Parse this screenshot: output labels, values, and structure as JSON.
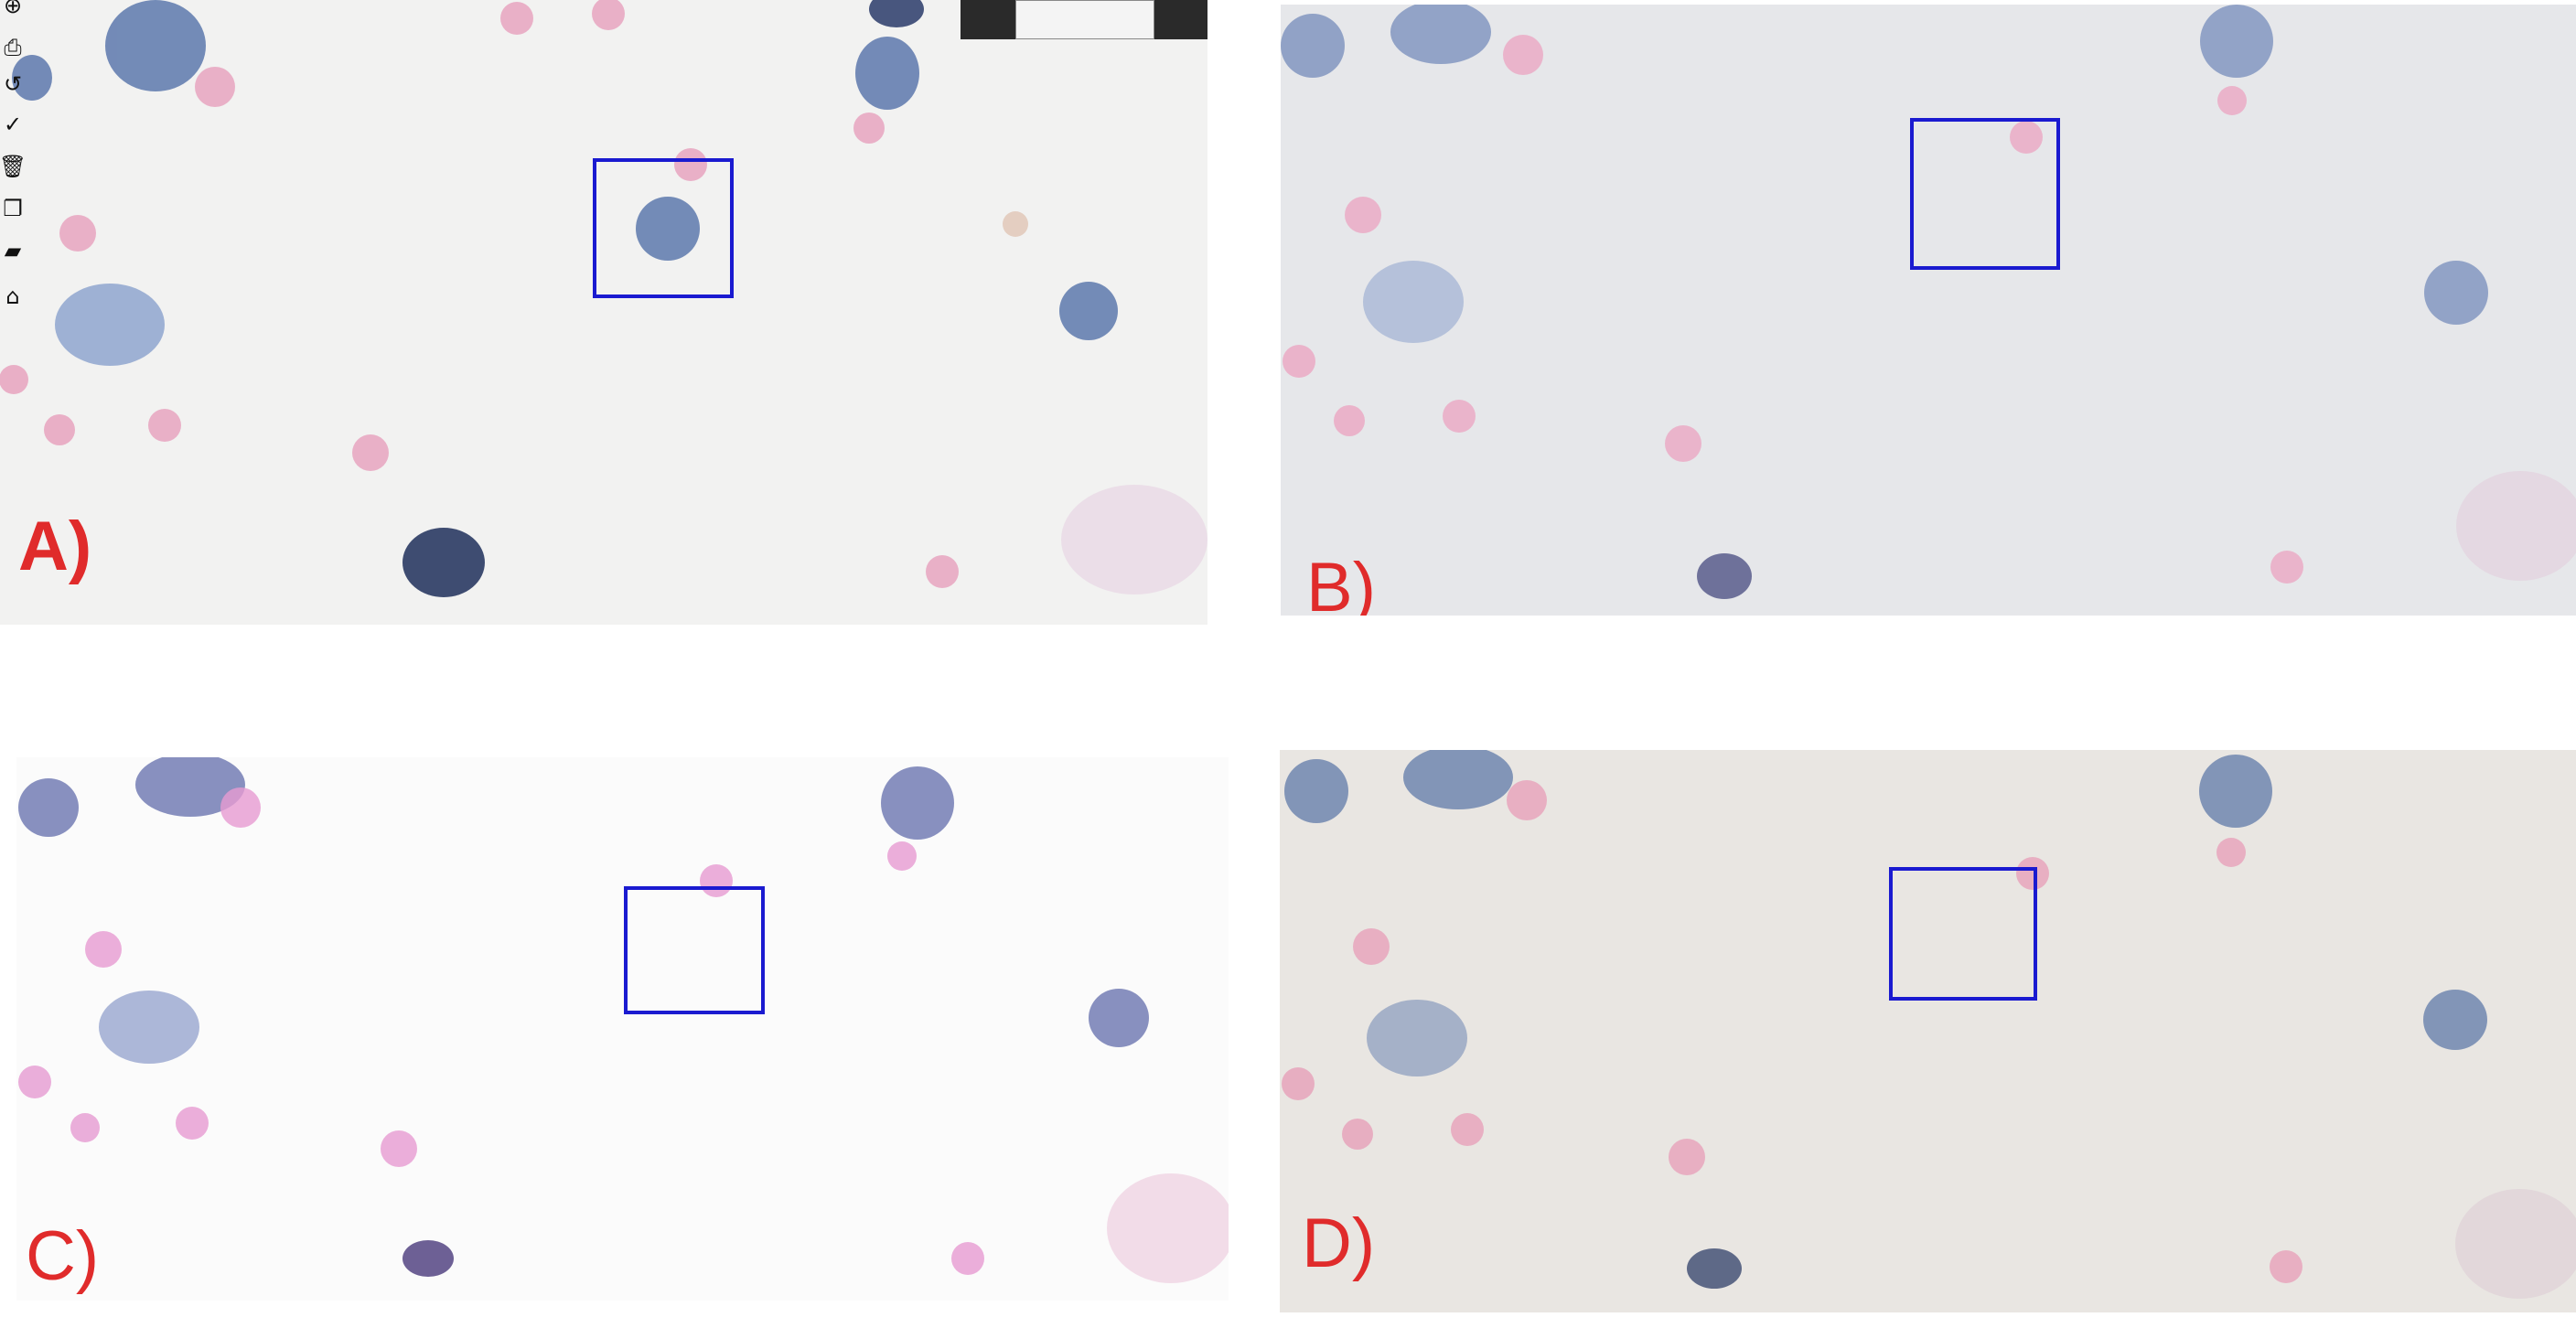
{
  "panels": [
    {
      "id": "a",
      "label": "A)"
    },
    {
      "id": "b",
      "label": "B)"
    },
    {
      "id": "c",
      "label": "C)"
    },
    {
      "id": "d",
      "label": "D)"
    }
  ],
  "toolbar": {
    "tools": [
      {
        "icon": "zoom-icon",
        "glyph": "⊕"
      },
      {
        "icon": "print-icon",
        "glyph": "⎙"
      },
      {
        "icon": "undo-icon",
        "glyph": "↺"
      },
      {
        "icon": "check-icon",
        "glyph": "✓"
      },
      {
        "icon": "trash-icon",
        "glyph": "🗑"
      },
      {
        "icon": "copy-icon",
        "glyph": "❐"
      },
      {
        "icon": "folder-icon",
        "glyph": "▰"
      },
      {
        "icon": "basket-icon",
        "glyph": "⌂"
      }
    ]
  },
  "colors": {
    "label": "#e02b2b",
    "roi_box": "#1a1ad0",
    "blue_cell": "#5b74a8",
    "pink_cell": "#e8a4bf"
  }
}
